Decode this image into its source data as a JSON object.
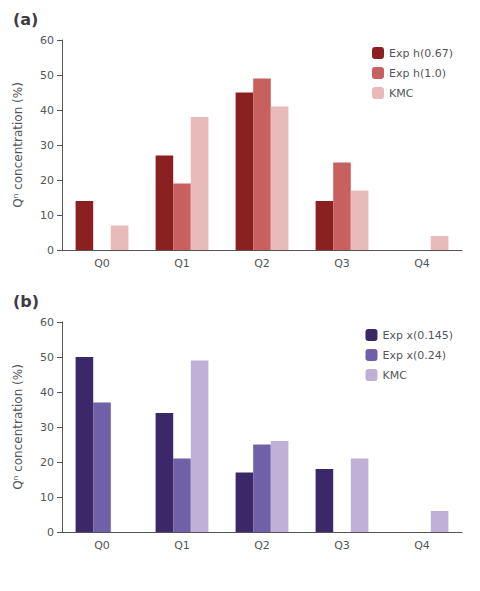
{
  "chart_data": [
    {
      "type": "bar",
      "title": "(a)",
      "categories": [
        "Q0",
        "Q1",
        "Q2",
        "Q3",
        "Q4"
      ],
      "series": [
        {
          "name": "Exp h(0.67)",
          "values": [
            14,
            27,
            45,
            14,
            0
          ],
          "color": "#8B2020"
        },
        {
          "name": "Exp h(1.0)",
          "values": [
            0,
            19,
            49,
            25,
            0
          ],
          "color": "#C86060"
        },
        {
          "name": "KMC",
          "values": [
            7,
            38,
            41,
            17,
            4
          ],
          "color": "#E8BABA"
        }
      ],
      "ylabel": "Qⁿ concentration (%)",
      "ylim": [
        0,
        60
      ],
      "yticks": [
        0,
        10,
        20,
        30,
        40,
        50,
        60
      ],
      "grid": false,
      "legend": "upper right"
    },
    {
      "type": "bar",
      "title": "(b)",
      "categories": [
        "Q0",
        "Q1",
        "Q2",
        "Q3",
        "Q4"
      ],
      "series": [
        {
          "name": "Exp x(0.145)",
          "values": [
            50,
            34,
            17,
            18,
            0
          ],
          "color": "#3A2868"
        },
        {
          "name": "Exp x(0.24)",
          "values": [
            37,
            21,
            25,
            0,
            0
          ],
          "color": "#7060A8"
        },
        {
          "name": "KMC",
          "values": [
            0,
            49,
            26,
            21,
            6
          ],
          "color": "#C0B0D8"
        }
      ],
      "ylabel": "Qⁿ concentration (%)",
      "ylim": [
        0,
        60
      ],
      "yticks": [
        0,
        10,
        20,
        30,
        40,
        50,
        60
      ],
      "grid": false,
      "legend": "upper right"
    }
  ]
}
